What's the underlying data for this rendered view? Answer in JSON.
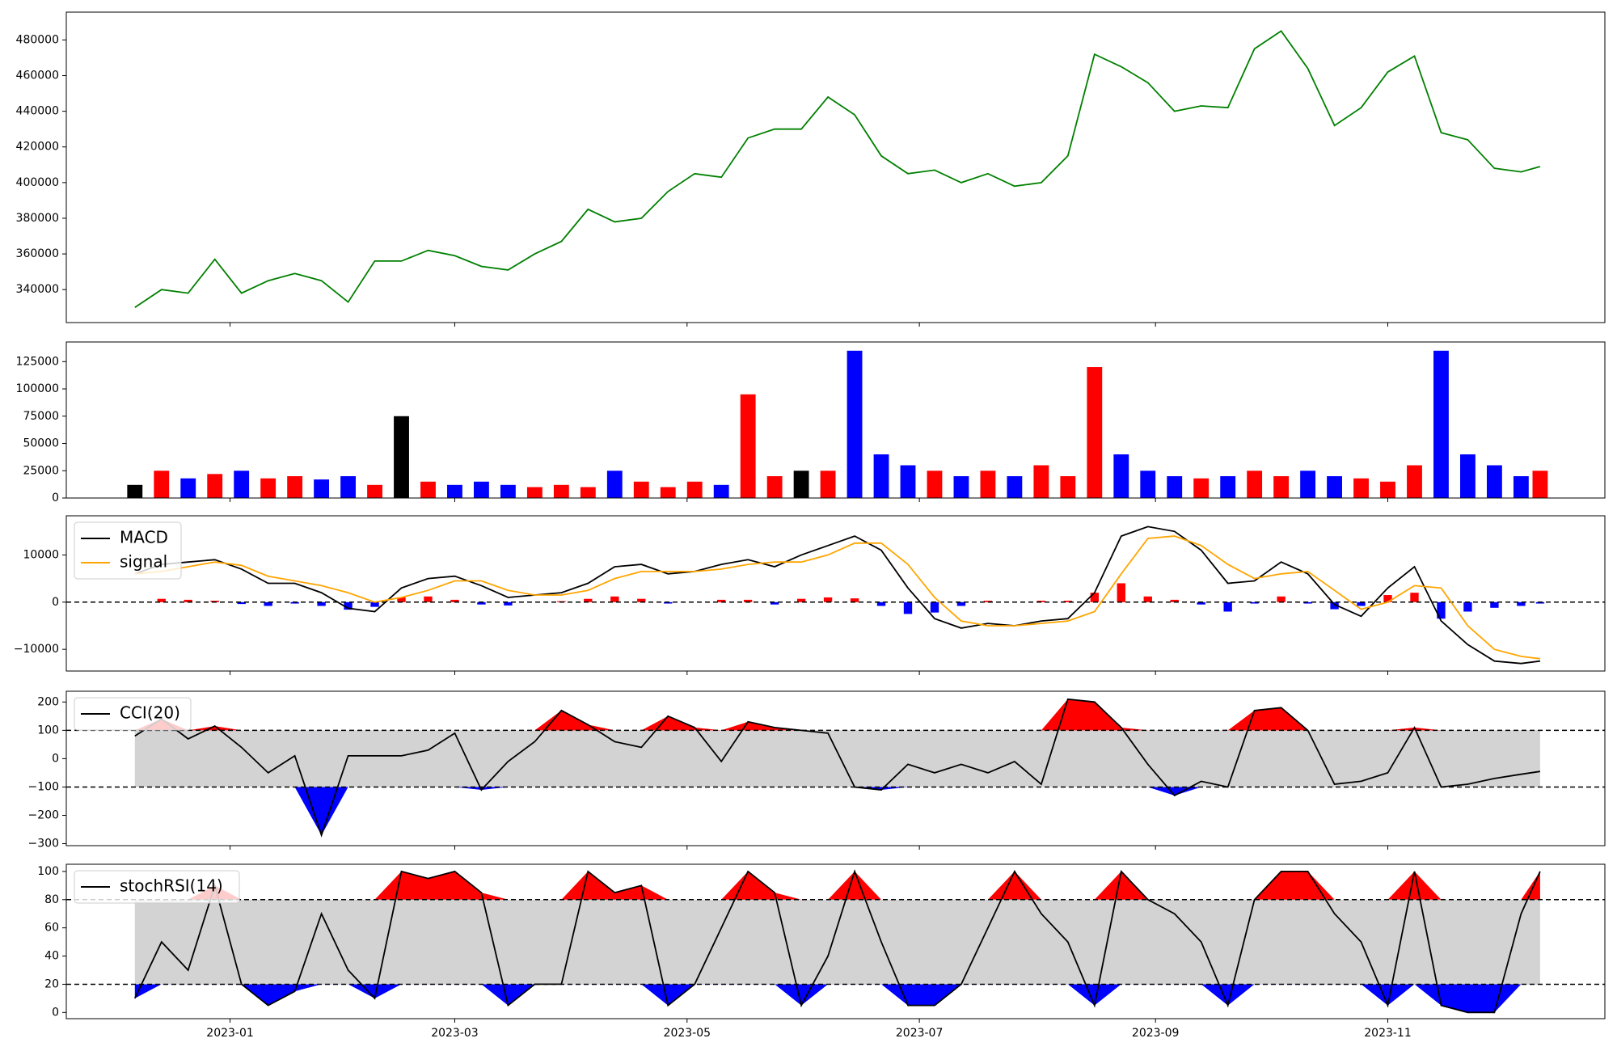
{
  "chart_data": [
    {
      "type": "line",
      "x": [
        -25,
        -18,
        -11,
        -4,
        3,
        10,
        17,
        24,
        31,
        38,
        45,
        52,
        59,
        66,
        73,
        80,
        87,
        94,
        101,
        108,
        115,
        122,
        129,
        136,
        143,
        150,
        157,
        164,
        171,
        178,
        185,
        192,
        199,
        206,
        213,
        220,
        227,
        234,
        241,
        248,
        255,
        262,
        269,
        276,
        283,
        290,
        297,
        304,
        311,
        318,
        325,
        332,
        339,
        344
      ],
      "values": [
        330000,
        340000,
        338000,
        357000,
        338000,
        345000,
        349000,
        345000,
        333000,
        356000,
        356000,
        362000,
        359000,
        353000,
        351000,
        360000,
        367000,
        385000,
        378000,
        380000,
        395000,
        405000,
        403000,
        425000,
        430000,
        430000,
        448000,
        438000,
        415000,
        405000,
        407000,
        400000,
        405000,
        398000,
        400000,
        415000,
        472000,
        465000,
        456000,
        440000,
        443000,
        442000,
        475000,
        485000,
        464000,
        432000,
        442000,
        462000,
        471000,
        428000,
        424000,
        408000,
        406000,
        409000
      ],
      "color": "green",
      "xlim": [
        -43,
        361
      ],
      "ylim": [
        321500,
        495600
      ],
      "yticks": [
        340000,
        360000,
        380000,
        400000,
        420000,
        440000,
        460000,
        480000
      ]
    },
    {
      "type": "bar",
      "x": [
        -25,
        -18,
        -11,
        -4,
        3,
        10,
        17,
        24,
        31,
        38,
        45,
        52,
        59,
        66,
        73,
        80,
        87,
        94,
        101,
        108,
        115,
        122,
        129,
        136,
        143,
        150,
        157,
        164,
        171,
        178,
        185,
        192,
        199,
        206,
        213,
        220,
        227,
        234,
        241,
        248,
        255,
        262,
        269,
        276,
        283,
        290,
        297,
        304,
        311,
        318,
        325,
        332,
        339,
        344
      ],
      "values": [
        12000,
        25000,
        18000,
        22000,
        25000,
        18000,
        20000,
        17000,
        20000,
        12000,
        75000,
        15000,
        12000,
        15000,
        12000,
        10000,
        12000,
        10000,
        25000,
        15000,
        10000,
        15000,
        12000,
        95000,
        20000,
        25000,
        25000,
        135000,
        40000,
        30000,
        25000,
        20000,
        25000,
        20000,
        30000,
        20000,
        120000,
        40000,
        25000,
        20000,
        18000,
        20000,
        25000,
        20000,
        25000,
        20000,
        18000,
        15000,
        30000,
        135000,
        40000,
        30000,
        20000,
        25000
      ],
      "colors": [
        "black",
        "red",
        "blue",
        "red",
        "blue",
        "red",
        "red",
        "blue",
        "blue",
        "red",
        "black",
        "red",
        "blue",
        "blue",
        "blue",
        "red",
        "red",
        "red",
        "blue",
        "red",
        "red",
        "red",
        "blue",
        "red",
        "red",
        "black",
        "red",
        "blue",
        "blue",
        "blue",
        "red",
        "blue",
        "red",
        "blue",
        "red",
        "red",
        "red",
        "blue",
        "blue",
        "blue",
        "red",
        "blue",
        "red",
        "red",
        "blue",
        "blue",
        "red",
        "red",
        "red",
        "blue",
        "blue",
        "blue",
        "blue",
        "red"
      ],
      "xlim": [
        -43,
        361
      ],
      "ylim": [
        0,
        143000
      ],
      "yticks": [
        0,
        25000,
        50000,
        75000,
        100000,
        125000
      ]
    },
    {
      "type": "line",
      "x": [
        -25,
        -18,
        -11,
        -4,
        3,
        10,
        17,
        24,
        31,
        38,
        45,
        52,
        59,
        66,
        73,
        80,
        87,
        94,
        101,
        108,
        115,
        122,
        129,
        136,
        143,
        150,
        157,
        164,
        171,
        178,
        185,
        192,
        199,
        206,
        213,
        220,
        227,
        234,
        241,
        248,
        255,
        262,
        269,
        276,
        283,
        290,
        297,
        304,
        311,
        318,
        325,
        332,
        339,
        344
      ],
      "series": [
        {
          "name": "MACD",
          "color": "black",
          "values": [
            6000,
            8000,
            8500,
            9000,
            7000,
            4000,
            4000,
            2000,
            -1300,
            -2000,
            3000,
            5000,
            5500,
            3500,
            1000,
            1500,
            2000,
            4000,
            7500,
            8000,
            6000,
            6500,
            8000,
            9000,
            7500,
            10000,
            12000,
            14000,
            11000,
            3000,
            -3500,
            -5500,
            -4500,
            -5000,
            -4000,
            -3500,
            2000,
            14000,
            16000,
            15000,
            11000,
            4000,
            4500,
            8500,
            6000,
            -500,
            -3000,
            3000,
            7500,
            -4000,
            -9000,
            -12500,
            -13000,
            -12500
          ]
        },
        {
          "name": "signal",
          "color": "orange",
          "values": [
            6000,
            6500,
            7500,
            8500,
            7800,
            5500,
            4500,
            3500,
            2000,
            0,
            1000,
            2500,
            4500,
            4500,
            2500,
            1500,
            1500,
            2500,
            5000,
            6500,
            6500,
            6500,
            7000,
            8000,
            8500,
            8500,
            10000,
            12500,
            12500,
            8000,
            1000,
            -4000,
            -5000,
            -5000,
            -4500,
            -4000,
            -2000,
            6000,
            13500,
            14000,
            12000,
            8000,
            5000,
            6000,
            6500,
            2500,
            -1500,
            0,
            3500,
            3000,
            -5000,
            -10000,
            -11500,
            -12000
          ]
        }
      ],
      "bars": [
        0,
        700,
        500,
        300,
        -400,
        -800,
        -300,
        -800,
        -1600,
        -1000,
        1000,
        1200,
        500,
        -500,
        -700,
        0,
        200,
        700,
        1200,
        700,
        -300,
        0,
        500,
        500,
        -500,
        700,
        1000,
        800,
        -800,
        -2500,
        -2200,
        -800,
        300,
        0,
        300,
        300,
        2000,
        4000,
        1200,
        500,
        -500,
        -2000,
        -300,
        1200,
        -300,
        -1500,
        -800,
        1500,
        2000,
        -3500,
        -2000,
        -1200,
        -800,
        -300
      ],
      "bar_colors": {
        "up": "red",
        "down": "blue"
      },
      "hline": 0,
      "legend": "upper left",
      "xlim": [
        -43,
        361
      ],
      "ylim": [
        -14600,
        18300
      ],
      "yticks": [
        {
          "value": -10000,
          "label": "−10000"
        },
        0,
        10000
      ]
    },
    {
      "type": "band",
      "x": [
        -25,
        -18,
        -11,
        -4,
        3,
        10,
        17,
        24,
        31,
        38,
        45,
        52,
        59,
        66,
        73,
        80,
        87,
        94,
        101,
        108,
        115,
        122,
        129,
        136,
        143,
        150,
        157,
        164,
        171,
        178,
        185,
        192,
        199,
        206,
        213,
        220,
        227,
        234,
        241,
        248,
        255,
        262,
        269,
        276,
        283,
        290,
        297,
        304,
        311,
        318,
        325,
        332,
        339,
        344
      ],
      "series": [
        {
          "name": "CCI(20)",
          "color": "black",
          "values": [
            80,
            140,
            70,
            115,
            40,
            -50,
            10,
            -270,
            10,
            10,
            10,
            30,
            90,
            -110,
            -10,
            60,
            170,
            120,
            60,
            40,
            150,
            110,
            -10,
            130,
            110,
            100,
            90,
            -100,
            -110,
            -20,
            -50,
            -20,
            -50,
            -10,
            -90,
            210,
            200,
            110,
            -20,
            -130,
            -80,
            -100,
            170,
            180,
            100,
            -90,
            -80,
            -50,
            110,
            -100,
            -90,
            -70,
            -55,
            -45
          ]
        }
      ],
      "thresholds": [
        -100,
        100
      ],
      "fill_colors": {
        "band": "lightgray",
        "above": "red",
        "below": "blue"
      },
      "legend": "upper left",
      "xlim": [
        -43,
        361
      ],
      "ylim": [
        -307,
        238
      ],
      "yticks": [
        {
          "value": -300,
          "label": "−300"
        },
        {
          "value": -200,
          "label": "−200"
        },
        {
          "value": -100,
          "label": "−100"
        },
        0,
        100,
        200
      ]
    },
    {
      "type": "band",
      "x": [
        -25,
        -18,
        -11,
        -4,
        3,
        10,
        17,
        24,
        31,
        38,
        45,
        52,
        59,
        66,
        73,
        80,
        87,
        94,
        101,
        108,
        115,
        122,
        129,
        136,
        143,
        150,
        157,
        164,
        171,
        178,
        185,
        192,
        199,
        206,
        213,
        220,
        227,
        234,
        241,
        248,
        255,
        262,
        269,
        276,
        283,
        290,
        297,
        304,
        311,
        318,
        325,
        332,
        339,
        344
      ],
      "series": [
        {
          "name": "stochRSI(14)",
          "color": "black",
          "values": [
            10,
            50,
            30,
            90,
            20,
            5,
            15,
            70,
            30,
            10,
            100,
            95,
            100,
            85,
            5,
            20,
            20,
            100,
            85,
            90,
            5,
            20,
            60,
            100,
            85,
            5,
            40,
            100,
            50,
            5,
            5,
            20,
            60,
            100,
            70,
            50,
            5,
            100,
            80,
            70,
            50,
            5,
            80,
            100,
            100,
            70,
            50,
            5,
            100,
            5,
            0,
            0,
            70,
            100
          ]
        }
      ],
      "thresholds": [
        20,
        80
      ],
      "fill_colors": {
        "band": "lightgray",
        "above": "red",
        "below": "blue"
      },
      "legend": "upper left",
      "xlim": [
        -43,
        361
      ],
      "ylim": [
        -4.4,
        105.1
      ],
      "yticks": [
        0,
        20,
        40,
        60,
        80,
        100
      ],
      "xticks": [
        {
          "value": 0,
          "label": "2023-01"
        },
        {
          "value": 59,
          "label": "2023-03"
        },
        {
          "value": 120,
          "label": "2023-05"
        },
        {
          "value": 181,
          "label": "2023-07"
        },
        {
          "value": 243,
          "label": "2023-09"
        },
        {
          "value": 304,
          "label": "2023-11"
        }
      ]
    }
  ]
}
